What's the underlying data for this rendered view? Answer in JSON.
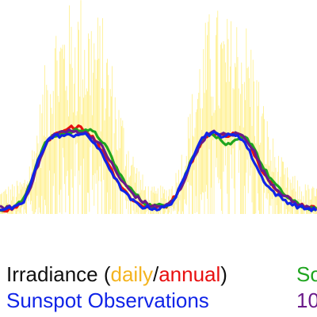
{
  "chart_data": {
    "type": "line",
    "title": "",
    "xlabel": "",
    "ylabel": "",
    "grid": false,
    "legend_placement": "bottom",
    "x": [
      0,
      10,
      20,
      30,
      40,
      50,
      60,
      70,
      80,
      90,
      100,
      110,
      120,
      130,
      140,
      150,
      160,
      170,
      180,
      190,
      200,
      210,
      220,
      230,
      240,
      250,
      260,
      270,
      280,
      290,
      300,
      310,
      320,
      330,
      340,
      350,
      360,
      370,
      380,
      390,
      400
    ],
    "xlim": [
      0,
      400
    ],
    "ylim": [
      0,
      1
    ],
    "series": [
      {
        "key": "daily",
        "color": "#ffe84a",
        "noisy": true,
        "values": [
          0.05,
          0.06,
          0.07,
          0.1,
          0.22,
          0.4,
          0.62,
          0.76,
          0.79,
          0.8,
          0.85,
          0.82,
          0.78,
          0.74,
          0.6,
          0.42,
          0.3,
          0.18,
          0.1,
          0.05,
          0.05,
          0.06,
          0.1,
          0.22,
          0.4,
          0.6,
          0.74,
          0.8,
          0.76,
          0.74,
          0.78,
          0.74,
          0.64,
          0.44,
          0.3,
          0.2,
          0.14,
          0.1,
          0.07,
          0.06,
          0.05
        ]
      },
      {
        "key": "annual",
        "color": "#e81010",
        "values": [
          0.05,
          0.04,
          0.06,
          0.14,
          0.32,
          0.55,
          0.7,
          0.77,
          0.79,
          0.84,
          0.86,
          0.8,
          0.72,
          0.6,
          0.44,
          0.3,
          0.2,
          0.12,
          0.08,
          0.07,
          0.06,
          0.08,
          0.16,
          0.3,
          0.48,
          0.64,
          0.76,
          0.78,
          0.76,
          0.77,
          0.78,
          0.72,
          0.6,
          0.44,
          0.32,
          0.24,
          0.18,
          0.12,
          0.09,
          0.07,
          0.05
        ]
      },
      {
        "key": "green",
        "color": "#1fa51f",
        "values": [
          0.05,
          0.06,
          0.08,
          0.14,
          0.34,
          0.58,
          0.72,
          0.76,
          0.78,
          0.8,
          0.82,
          0.82,
          0.78,
          0.7,
          0.56,
          0.4,
          0.28,
          0.2,
          0.12,
          0.08,
          0.08,
          0.09,
          0.16,
          0.3,
          0.5,
          0.66,
          0.76,
          0.78,
          0.7,
          0.66,
          0.72,
          0.74,
          0.66,
          0.48,
          0.36,
          0.26,
          0.18,
          0.12,
          0.08,
          0.06,
          0.05
        ]
      },
      {
        "key": "purple",
        "color": "#6a1a8a",
        "values": [
          0.06,
          0.06,
          0.07,
          0.12,
          0.3,
          0.52,
          0.7,
          0.78,
          0.8,
          0.8,
          0.8,
          0.78,
          0.72,
          0.64,
          0.5,
          0.36,
          0.26,
          0.18,
          0.12,
          0.08,
          0.07,
          0.08,
          0.14,
          0.28,
          0.48,
          0.64,
          0.76,
          0.79,
          0.77,
          0.77,
          0.78,
          0.74,
          0.62,
          0.44,
          0.32,
          0.24,
          0.17,
          0.12,
          0.08,
          0.06,
          0.05
        ]
      },
      {
        "key": "sunspot",
        "color": "#1024e8",
        "values": [
          0.05,
          0.05,
          0.06,
          0.12,
          0.32,
          0.56,
          0.72,
          0.76,
          0.76,
          0.76,
          0.78,
          0.76,
          0.68,
          0.56,
          0.42,
          0.28,
          0.18,
          0.11,
          0.07,
          0.06,
          0.05,
          0.07,
          0.14,
          0.3,
          0.5,
          0.68,
          0.78,
          0.78,
          0.76,
          0.76,
          0.77,
          0.68,
          0.52,
          0.36,
          0.25,
          0.18,
          0.13,
          0.09,
          0.06,
          0.05,
          0.04
        ]
      }
    ]
  },
  "legend": {
    "row1": {
      "prefix": "Irradiance (",
      "daily": "daily",
      "slash": "/",
      "annual": "annual",
      "suffix": ")",
      "right": "So",
      "colors": {
        "text": "#111111",
        "daily": "#f4b420",
        "annual": "#e81010",
        "right": "#1fa51f"
      }
    },
    "row2": {
      "sunspot": "Sunspot Observations",
      "right": "10",
      "colors": {
        "sunspot": "#1024e8",
        "right": "#6a1a8a"
      }
    }
  }
}
